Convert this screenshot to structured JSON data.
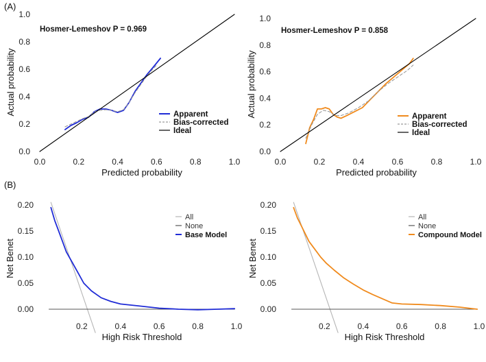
{
  "panels": {
    "a": "(A)",
    "b": "(B)"
  },
  "chart_data": [
    {
      "type": "line",
      "title": "Hosmer-Lemeshov P = 0.969",
      "xlabel": "Predicted probability",
      "ylabel": "Actual probability",
      "xlim": [
        0,
        1
      ],
      "ylim": [
        0,
        1
      ],
      "xticks": [
        "0.0",
        "0.2",
        "0.4",
        "0.6",
        "0.8",
        "1.0"
      ],
      "yticks": [
        "0.0",
        "0.2",
        "0.4",
        "0.6",
        "0.8",
        "1.0"
      ],
      "legend": [
        "Apparent",
        "Bias-corrected",
        "Ideal"
      ],
      "series": [
        {
          "name": "Apparent",
          "color": "#1f2bd6",
          "x": [
            0.13,
            0.16,
            0.19,
            0.22,
            0.25,
            0.28,
            0.31,
            0.34,
            0.37,
            0.4,
            0.43,
            0.46,
            0.49,
            0.52,
            0.55,
            0.58,
            0.62
          ],
          "y": [
            0.16,
            0.19,
            0.21,
            0.235,
            0.25,
            0.29,
            0.31,
            0.31,
            0.3,
            0.285,
            0.3,
            0.36,
            0.44,
            0.5,
            0.56,
            0.61,
            0.68
          ]
        },
        {
          "name": "Bias-corrected",
          "color": "#999999",
          "dashed": true,
          "x": [
            0.13,
            0.16,
            0.19,
            0.22,
            0.25,
            0.28,
            0.31,
            0.34,
            0.37,
            0.4,
            0.43,
            0.46,
            0.49,
            0.52,
            0.55,
            0.58,
            0.6
          ],
          "y": [
            0.18,
            0.2,
            0.22,
            0.24,
            0.255,
            0.29,
            0.3,
            0.305,
            0.3,
            0.29,
            0.305,
            0.36,
            0.43,
            0.49,
            0.55,
            0.6,
            0.63
          ]
        },
        {
          "name": "Ideal",
          "color": "#000000",
          "x": [
            0,
            1
          ],
          "y": [
            0,
            1
          ]
        }
      ]
    },
    {
      "type": "line",
      "title": "Hosmer-Lemeshov P = 0.858",
      "xlabel": "Predicted probability",
      "ylabel": "Actual probability",
      "xlim": [
        0,
        1
      ],
      "ylim": [
        0,
        1
      ],
      "xticks": [
        "0.0",
        "0.2",
        "0.4",
        "0.6",
        "0.8",
        "1.0"
      ],
      "yticks": [
        "0.0",
        "0.2",
        "0.4",
        "0.6",
        "0.8",
        "1.0"
      ],
      "legend": [
        "Apparent",
        "Bias-corrected",
        "Ideal"
      ],
      "series": [
        {
          "name": "Apparent",
          "color": "#f08a1c",
          "x": [
            0.13,
            0.15,
            0.17,
            0.19,
            0.21,
            0.23,
            0.25,
            0.27,
            0.29,
            0.31,
            0.34,
            0.38,
            0.42,
            0.46,
            0.5,
            0.54,
            0.58,
            0.62,
            0.66,
            0.68
          ],
          "y": [
            0.06,
            0.18,
            0.24,
            0.32,
            0.32,
            0.33,
            0.32,
            0.28,
            0.26,
            0.25,
            0.27,
            0.3,
            0.33,
            0.39,
            0.45,
            0.51,
            0.56,
            0.61,
            0.66,
            0.7
          ]
        },
        {
          "name": "Bias-corrected",
          "color": "#999999",
          "dashed": true,
          "x": [
            0.13,
            0.16,
            0.19,
            0.22,
            0.25,
            0.28,
            0.31,
            0.35,
            0.4,
            0.45,
            0.5,
            0.55,
            0.6,
            0.65,
            0.68
          ],
          "y": [
            0.1,
            0.2,
            0.28,
            0.31,
            0.3,
            0.27,
            0.27,
            0.29,
            0.33,
            0.38,
            0.45,
            0.51,
            0.56,
            0.61,
            0.65
          ]
        },
        {
          "name": "Ideal",
          "color": "#000000",
          "x": [
            0,
            1
          ],
          "y": [
            0,
            1
          ]
        }
      ]
    },
    {
      "type": "line",
      "title": "",
      "xlabel": "High Risk Threshold",
      "ylabel": "Net Benet",
      "xlim": [
        0,
        1
      ],
      "ylim": [
        -0.05,
        0.22
      ],
      "xticks": [
        "0.2",
        "0.4",
        "0.6",
        "0.8",
        "1.0"
      ],
      "yticks": [
        "0.00",
        "0.05",
        "0.10",
        "0.15",
        "0.20"
      ],
      "legend": [
        "All",
        "None",
        "Base Model"
      ],
      "series": [
        {
          "name": "All",
          "color": "#b5b5b5",
          "x": [
            0.04,
            0.27
          ],
          "y": [
            0.205,
            -0.045
          ]
        },
        {
          "name": "None",
          "color": "#555555",
          "x": [
            0.03,
            0.99
          ],
          "y": [
            0,
            0
          ]
        },
        {
          "name": "Base Model",
          "color": "#1f2bd6",
          "x": [
            0.04,
            0.06,
            0.08,
            0.1,
            0.12,
            0.15,
            0.18,
            0.21,
            0.25,
            0.3,
            0.35,
            0.4,
            0.5,
            0.6,
            0.7,
            0.8,
            0.9,
            0.99
          ],
          "y": [
            0.195,
            0.17,
            0.15,
            0.13,
            0.11,
            0.09,
            0.07,
            0.05,
            0.035,
            0.022,
            0.015,
            0.01,
            0.006,
            0.002,
            0.0,
            -0.001,
            0.0,
            0.001
          ]
        }
      ]
    },
    {
      "type": "line",
      "title": "",
      "xlabel": "High Risk Threshold",
      "ylabel": "Net Benet",
      "xlim": [
        0,
        1
      ],
      "ylim": [
        -0.05,
        0.22
      ],
      "xticks": [
        "0.2",
        "0.4",
        "0.6",
        "0.8",
        "1.0"
      ],
      "yticks": [
        "0.00",
        "0.05",
        "0.10",
        "0.15",
        "0.20"
      ],
      "legend": [
        "All",
        "None",
        "Compound Model"
      ],
      "series": [
        {
          "name": "All",
          "color": "#b5b5b5",
          "x": [
            0.04,
            0.27
          ],
          "y": [
            0.205,
            -0.045
          ]
        },
        {
          "name": "None",
          "color": "#555555",
          "x": [
            0.03,
            0.99
          ],
          "y": [
            0,
            0
          ]
        },
        {
          "name": "Compound Model",
          "color": "#f08a1c",
          "x": [
            0.04,
            0.06,
            0.08,
            0.1,
            0.12,
            0.15,
            0.18,
            0.21,
            0.25,
            0.3,
            0.35,
            0.4,
            0.45,
            0.5,
            0.55,
            0.6,
            0.7,
            0.8,
            0.9,
            0.99
          ],
          "y": [
            0.195,
            0.175,
            0.16,
            0.145,
            0.13,
            0.115,
            0.1,
            0.088,
            0.075,
            0.06,
            0.048,
            0.037,
            0.028,
            0.02,
            0.012,
            0.01,
            0.009,
            0.007,
            0.004,
            0.0
          ]
        }
      ]
    }
  ]
}
